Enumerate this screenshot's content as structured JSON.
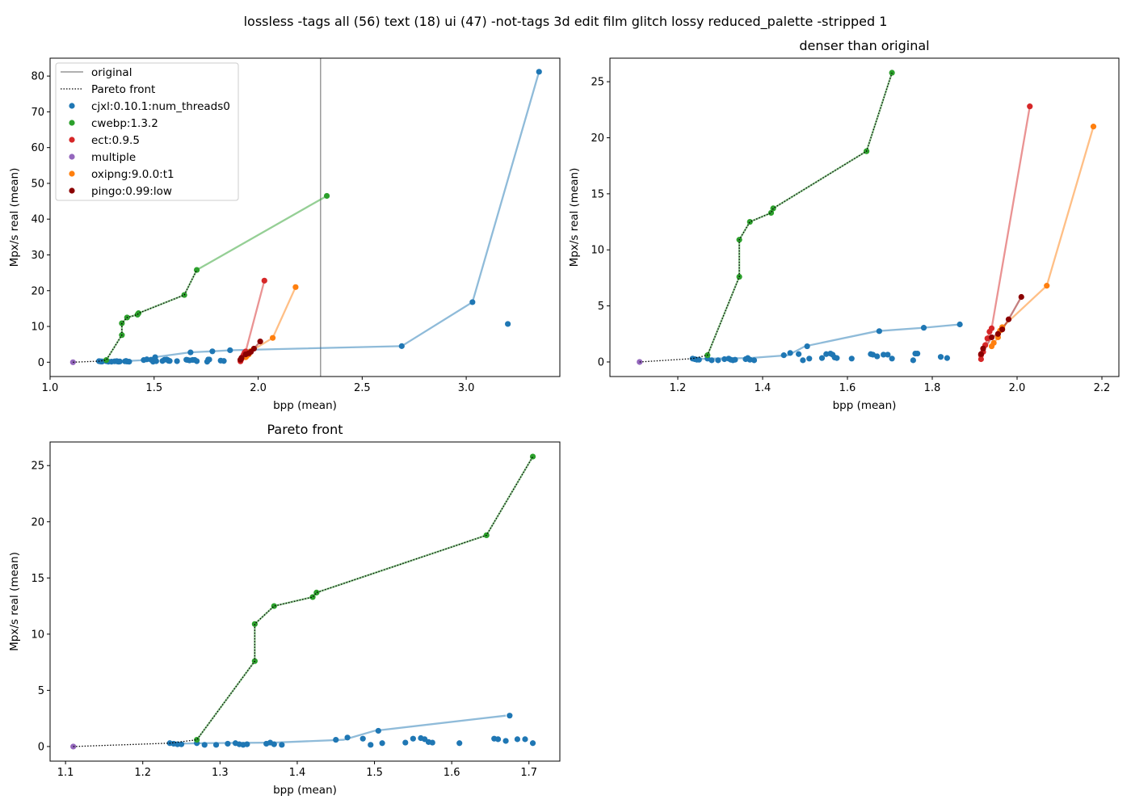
{
  "suptitle": "lossless -tags all (56) text (18) ui (47) -not-tags 3d edit film glitch lossy reduced_palette -stripped 1",
  "colors": {
    "cjxl:0.10.1:num_threads0": "#1f77b4",
    "cwebp:1.3.2": "#2ca02c",
    "ect:0.9.5": "#d62728",
    "multiple": "#9467bd",
    "oxipng:9.0.0:t1": "#ff7f0e",
    "pingo:0.99:low": "#8b0000",
    "original": "#808080",
    "pareto": "#000000"
  },
  "legend": {
    "original": "original",
    "pareto": "Pareto front",
    "series": [
      "cjxl:0.10.1:num_threads0",
      "cwebp:1.3.2",
      "ect:0.9.5",
      "multiple",
      "oxipng:9.0.0:t1",
      "pingo:0.99:low"
    ],
    "placement": "upper-left"
  },
  "chart_data": [
    {
      "type": "scatter",
      "title": "",
      "xlabel": "bpp (mean)",
      "ylabel": "Mpx/s real (mean)",
      "xlim": [
        1.0,
        3.45
      ],
      "ylim": [
        -4,
        85
      ],
      "xticks": [
        1.0,
        1.5,
        2.0,
        2.5,
        3.0
      ],
      "yticks": [
        0,
        10,
        20,
        30,
        40,
        50,
        60,
        70,
        80
      ],
      "original_bpp": 2.3,
      "legend": true
    },
    {
      "type": "scatter",
      "title": "denser than original",
      "xlabel": "bpp (mean)",
      "ylabel": "Mpx/s real (mean)",
      "xlim": [
        1.04,
        2.24
      ],
      "ylim": [
        -1.3,
        27.1
      ],
      "xticks": [
        1.2,
        1.4,
        1.6,
        1.8,
        2.0,
        2.2
      ],
      "yticks": [
        0,
        5,
        10,
        15,
        20,
        25
      ],
      "max_bpp": 2.3
    },
    {
      "type": "scatter",
      "title": "Pareto front",
      "xlabel": "bpp (mean)",
      "ylabel": "Mpx/s real (mean)",
      "xlim": [
        1.08,
        1.74
      ],
      "ylim": [
        -1.3,
        27.1
      ],
      "xticks": [
        1.1,
        1.2,
        1.3,
        1.4,
        1.5,
        1.6,
        1.7
      ],
      "yticks": [
        0,
        5,
        10,
        15,
        20,
        25
      ],
      "max_bpp": 1.71
    }
  ],
  "series": [
    {
      "name": "cjxl:0.10.1:num_threads0",
      "color": "#1f77b4",
      "line": [
        [
          1.24,
          0.25
        ],
        [
          1.28,
          0.3
        ],
        [
          1.37,
          0.35
        ],
        [
          1.46,
          0.6
        ],
        [
          1.5,
          1.4
        ],
        [
          1.67,
          2.75
        ],
        [
          1.78,
          3.05
        ],
        [
          1.865,
          3.35
        ],
        [
          2.69,
          4.5
        ],
        [
          3.03,
          16.8
        ],
        [
          3.35,
          81.2
        ]
      ],
      "points": [
        [
          1.235,
          0.3
        ],
        [
          1.24,
          0.25
        ],
        [
          1.245,
          0.2
        ],
        [
          1.25,
          0.2
        ],
        [
          1.27,
          0.3
        ],
        [
          1.28,
          0.15
        ],
        [
          1.295,
          0.15
        ],
        [
          1.31,
          0.25
        ],
        [
          1.32,
          0.3
        ],
        [
          1.325,
          0.2
        ],
        [
          1.33,
          0.15
        ],
        [
          1.335,
          0.2
        ],
        [
          1.36,
          0.25
        ],
        [
          1.365,
          0.35
        ],
        [
          1.37,
          0.2
        ],
        [
          1.38,
          0.15
        ],
        [
          1.45,
          0.6
        ],
        [
          1.465,
          0.8
        ],
        [
          1.485,
          0.7
        ],
        [
          1.495,
          0.15
        ],
        [
          1.505,
          1.4
        ],
        [
          1.51,
          0.3
        ],
        [
          1.54,
          0.35
        ],
        [
          1.55,
          0.7
        ],
        [
          1.56,
          0.75
        ],
        [
          1.565,
          0.65
        ],
        [
          1.57,
          0.4
        ],
        [
          1.575,
          0.35
        ],
        [
          1.61,
          0.3
        ],
        [
          1.655,
          0.7
        ],
        [
          1.66,
          0.65
        ],
        [
          1.67,
          0.5
        ],
        [
          1.675,
          2.75
        ],
        [
          1.685,
          0.65
        ],
        [
          1.695,
          0.65
        ],
        [
          1.705,
          0.3
        ],
        [
          1.755,
          0.15
        ],
        [
          1.76,
          0.75
        ],
        [
          1.765,
          0.75
        ],
        [
          1.78,
          3.05
        ],
        [
          1.82,
          0.45
        ],
        [
          1.835,
          0.35
        ],
        [
          1.865,
          3.35
        ],
        [
          2.69,
          4.5
        ],
        [
          3.03,
          16.8
        ],
        [
          3.2,
          10.7
        ],
        [
          3.35,
          81.2
        ]
      ]
    },
    {
      "name": "cwebp:1.3.2",
      "color": "#2ca02c",
      "line": [
        [
          1.27,
          0.6
        ],
        [
          1.345,
          7.6
        ],
        [
          1.345,
          10.9
        ],
        [
          1.37,
          12.5
        ],
        [
          1.42,
          13.3
        ],
        [
          1.425,
          13.7
        ],
        [
          1.645,
          18.8
        ],
        [
          1.705,
          25.8
        ],
        [
          2.33,
          46.5
        ]
      ],
      "points": [
        [
          1.27,
          0.6
        ],
        [
          1.345,
          7.6
        ],
        [
          1.345,
          10.9
        ],
        [
          1.37,
          12.5
        ],
        [
          1.42,
          13.3
        ],
        [
          1.425,
          13.7
        ],
        [
          1.645,
          18.8
        ],
        [
          1.705,
          25.8
        ],
        [
          2.33,
          46.5
        ]
      ]
    },
    {
      "name": "ect:0.9.5",
      "color": "#d62728",
      "line": [
        [
          1.915,
          0.25
        ],
        [
          1.92,
          0.9
        ],
        [
          1.925,
          1.5
        ],
        [
          1.935,
          2.7
        ],
        [
          1.94,
          3.0
        ],
        [
          2.03,
          22.8
        ]
      ],
      "points": [
        [
          1.915,
          0.25
        ],
        [
          1.915,
          0.6
        ],
        [
          1.92,
          0.9
        ],
        [
          1.925,
          1.5
        ],
        [
          1.93,
          2.1
        ],
        [
          1.935,
          2.7
        ],
        [
          1.94,
          3.0
        ],
        [
          2.03,
          22.8
        ]
      ]
    },
    {
      "name": "oxipng:9.0.0:t1",
      "color": "#ff7f0e",
      "line": [
        [
          1.94,
          1.4
        ],
        [
          1.955,
          2.2
        ],
        [
          1.965,
          3.1
        ],
        [
          2.07,
          6.8
        ],
        [
          2.18,
          21.0
        ]
      ],
      "points": [
        [
          1.94,
          1.4
        ],
        [
          1.945,
          1.7
        ],
        [
          1.955,
          2.2
        ],
        [
          1.96,
          2.8
        ],
        [
          1.965,
          3.1
        ],
        [
          2.07,
          6.8
        ],
        [
          2.18,
          21.0
        ]
      ]
    },
    {
      "name": "pingo:0.99:low",
      "color": "#8b0000",
      "line": [
        [
          1.915,
          0.7
        ],
        [
          1.94,
          2.2
        ],
        [
          1.955,
          2.5
        ],
        [
          1.965,
          2.9
        ],
        [
          1.98,
          3.8
        ],
        [
          2.01,
          5.8
        ]
      ],
      "points": [
        [
          1.915,
          0.7
        ],
        [
          1.92,
          1.2
        ],
        [
          1.94,
          2.2
        ],
        [
          1.955,
          2.5
        ],
        [
          1.965,
          2.9
        ],
        [
          1.98,
          3.8
        ],
        [
          2.01,
          5.8
        ]
      ]
    },
    {
      "name": "multiple",
      "color": "#9467bd",
      "line": [],
      "points": [
        [
          1.11,
          0.0
        ]
      ]
    }
  ],
  "pareto_front": [
    [
      1.11,
      0.0
    ],
    [
      1.235,
      0.3
    ],
    [
      1.27,
      0.6
    ],
    [
      1.345,
      7.6
    ],
    [
      1.345,
      10.9
    ],
    [
      1.37,
      12.5
    ],
    [
      1.42,
      13.3
    ],
    [
      1.425,
      13.7
    ],
    [
      1.645,
      18.8
    ],
    [
      1.705,
      25.8
    ]
  ]
}
